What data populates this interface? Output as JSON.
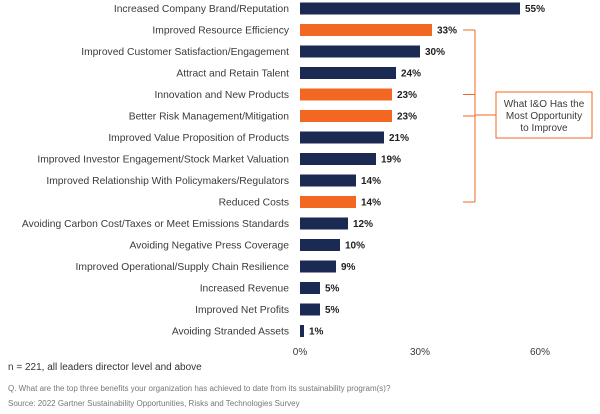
{
  "colors": {
    "default_bar": "#1b2a52",
    "highlight_bar": "#f26722",
    "axis": "#bfbfbf",
    "bracket": "#f26722"
  },
  "chart_data": {
    "type": "bar",
    "orientation": "horizontal",
    "value_format": "percent",
    "xlim": [
      0,
      60
    ],
    "x_ticks": [
      "0%",
      "30%",
      "60%"
    ],
    "grid": false,
    "categories": [
      "Increased Company Brand/Reputation",
      "Improved Resource Efficiency",
      "Improved Customer Satisfaction/Engagement",
      "Attract and Retain Talent",
      "Innovation and New Products",
      "Better Risk Management/Mitigation",
      "Improved Value Proposition of Products",
      "Improved Investor Engagement/Stock Market Valuation",
      "Improved Relationship With Policymakers/Regulators",
      "Reduced Costs",
      "Avoiding Carbon Cost/Taxes or Meet Emissions Standards",
      "Avoiding Negative Press Coverage",
      "Improved Operational/Supply Chain Resilience",
      "Increased Revenue",
      "Improved Net Profits",
      "Avoiding Stranded Assets"
    ],
    "values": [
      55,
      33,
      30,
      24,
      23,
      23,
      21,
      19,
      14,
      14,
      12,
      10,
      9,
      5,
      5,
      1
    ],
    "value_labels": [
      "55%",
      "33%",
      "30%",
      "24%",
      "23%",
      "23%",
      "21%",
      "19%",
      "14%",
      "14%",
      "12%",
      "10%",
      "9%",
      "5%",
      "5%",
      "1%"
    ],
    "highlighted": [
      false,
      true,
      false,
      false,
      true,
      true,
      false,
      false,
      false,
      true,
      false,
      false,
      false,
      false,
      false,
      false
    ],
    "annotation": {
      "lines": [
        "What I&O Has the",
        "Most Opportunity",
        "to Improve"
      ]
    }
  },
  "notes": {
    "sample": "n = 221, all leaders director level and above",
    "question": "Q. What are the top three benefits your organization has achieved to date from its sustainability program(s)?",
    "source": "Source: 2022 Gartner Sustainability Opportunities, Risks and Technologies Survey"
  }
}
